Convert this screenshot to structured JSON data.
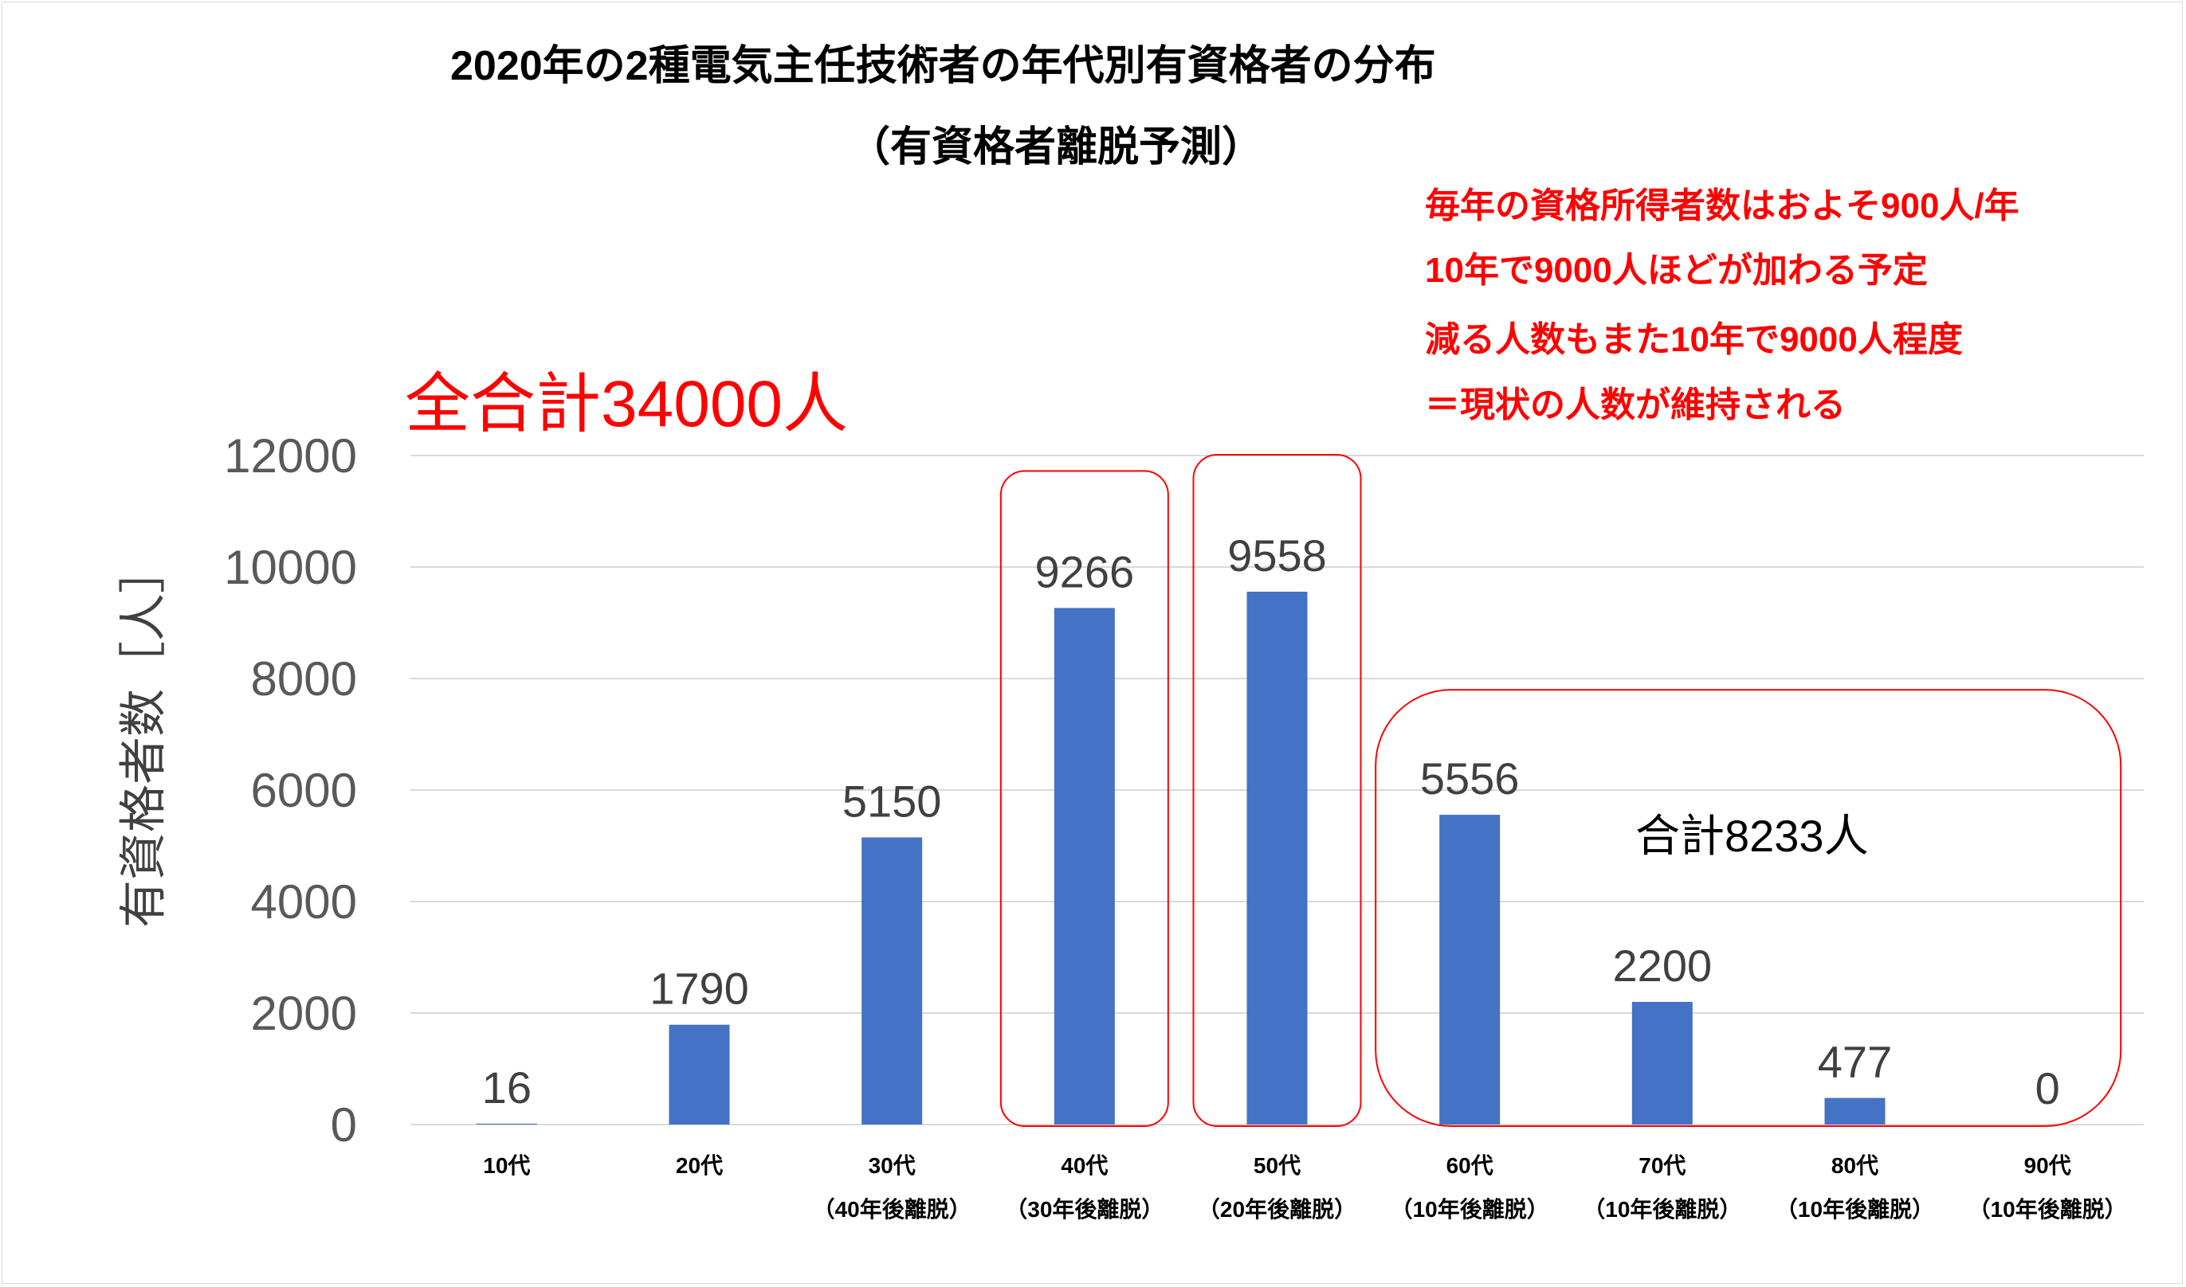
{
  "title_line1": "2020年の2種電気主任技術者の年代別有資格者の分布",
  "title_line2": "（有資格者離脱予測）",
  "notes": [
    "毎年の資格所得者数はおよそ900人/年",
    "10年で9000人ほどが加わる予定",
    "減る人数もまた10年で9000人程度",
    "＝現状の人数が維持される"
  ],
  "grand_total_label": "全合計34000人",
  "subtotal_label": "合計8233人",
  "colors": {
    "bar": "#4472c4",
    "highlight": "#ff0000",
    "grid": "#d9d9d9"
  },
  "chart_data": {
    "type": "bar",
    "ylabel": "有資格者数［人］",
    "ylim": [
      0,
      12000
    ],
    "yticks": [
      0,
      2000,
      4000,
      6000,
      8000,
      10000,
      12000
    ],
    "grid": true,
    "categories": [
      [
        "10代",
        ""
      ],
      [
        "20代",
        ""
      ],
      [
        "30代",
        "（40年後離脱）"
      ],
      [
        "40代",
        "（30年後離脱）"
      ],
      [
        "50代",
        "（20年後離脱）"
      ],
      [
        "60代",
        "（10年後離脱）"
      ],
      [
        "70代",
        "（10年後離脱）"
      ],
      [
        "80代",
        "（10年後離脱）"
      ],
      [
        "90代",
        "（10年後離脱）"
      ]
    ],
    "values": [
      16,
      1790,
      5150,
      9266,
      9558,
      5556,
      2200,
      477,
      0
    ],
    "highlight_groups": [
      [
        3
      ],
      [
        4
      ],
      [
        5,
        6,
        7,
        8
      ]
    ]
  }
}
